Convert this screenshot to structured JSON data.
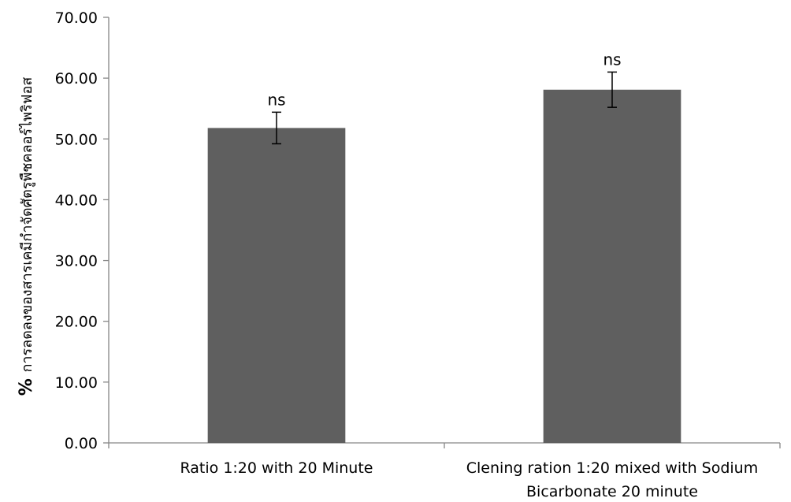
{
  "chart_data": {
    "type": "bar",
    "ylabel_symbol": "%",
    "ylabel": "การลดลงของสารเคมีกำจัดศัตรูพืชคลอร์ไพริฟอส",
    "ylim": [
      0,
      70
    ],
    "yticks": [
      "0.00",
      "10.00",
      "20.00",
      "30.00",
      "40.00",
      "50.00",
      "60.00",
      "70.00"
    ],
    "grid": false,
    "categories": [
      [
        "Ratio 1:20 with 20 Minute"
      ],
      [
        "Clening ration 1:20 mixed with Sodium",
        "Bicarbonate 20 minute"
      ]
    ],
    "values": [
      51.8,
      58.1
    ],
    "error": [
      2.6,
      2.9
    ],
    "annotations": [
      "ns",
      "ns"
    ],
    "colors": {
      "bar": "#5f5f5f",
      "axis": "#868686"
    }
  }
}
